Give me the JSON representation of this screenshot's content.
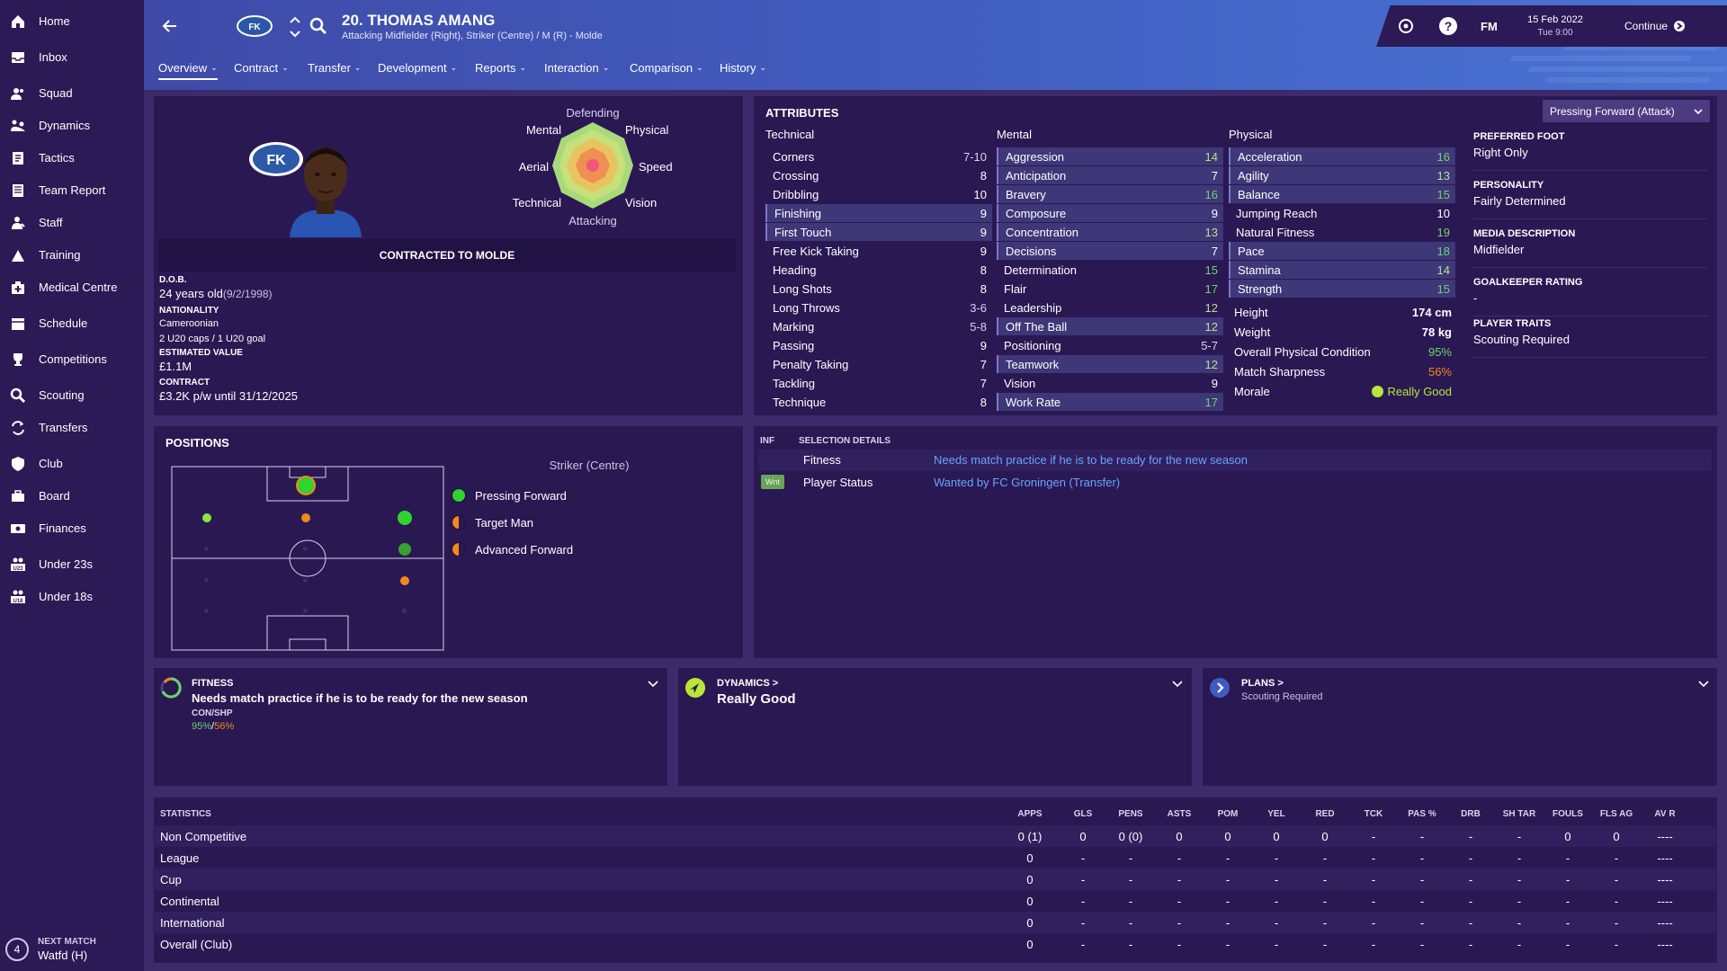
{
  "sidebar": {
    "items": [
      {
        "label": "Home",
        "icon": "home-icon"
      },
      {
        "label": "Inbox",
        "icon": "inbox-icon"
      },
      {
        "label": "Squad",
        "icon": "squad-icon"
      },
      {
        "label": "Dynamics",
        "icon": "dynamics-icon"
      },
      {
        "label": "Tactics",
        "icon": "tactics-icon"
      },
      {
        "label": "Team Report",
        "icon": "report-icon"
      },
      {
        "label": "Staff",
        "icon": "staff-icon"
      },
      {
        "label": "Training",
        "icon": "training-icon"
      },
      {
        "label": "Medical Centre",
        "icon": "medical-icon"
      },
      {
        "label": "Schedule",
        "icon": "calendar-icon"
      },
      {
        "label": "Competitions",
        "icon": "trophy-icon"
      },
      {
        "label": "Scouting",
        "icon": "search-icon"
      },
      {
        "label": "Transfers",
        "icon": "transfer-icon"
      },
      {
        "label": "Club",
        "icon": "shield-icon"
      },
      {
        "label": "Board",
        "icon": "board-icon"
      },
      {
        "label": "Finances",
        "icon": "finance-icon"
      },
      {
        "label": "Under 23s",
        "icon": "u23-icon"
      },
      {
        "label": "Under 18s",
        "icon": "u18-icon"
      }
    ],
    "next_match": {
      "label": "NEXT MATCH",
      "value": "Watfd (H)",
      "days": "4"
    }
  },
  "header": {
    "player_title": "20. THOMAS AMANG",
    "positions": "Attacking Midfielder (Right), Striker (Centre) / M (R) - Molde",
    "date": "15 Feb 2022",
    "time": "Tue 9:00",
    "fm_label": "FM",
    "continue_label": "Continue",
    "help_label": "?"
  },
  "tabs": [
    {
      "label": "Overview"
    },
    {
      "label": "Contract"
    },
    {
      "label": "Transfer"
    },
    {
      "label": "Development"
    },
    {
      "label": "Reports"
    },
    {
      "label": "Interaction"
    },
    {
      "label": "Comparison"
    },
    {
      "label": "History"
    }
  ],
  "profile": {
    "radar_labels": {
      "top": "Defending",
      "bottom": "Attacking",
      "tl": "Mental",
      "tr": "Physical",
      "ml": "Aerial",
      "mr": "Speed",
      "bl": "Technical",
      "br": "Vision"
    },
    "contract_banner": "CONTRACTED TO MOLDE",
    "dob_label": "D.O.B.",
    "dob_age": "24 years old",
    "dob_date": "(9/2/1998)",
    "nationality_label": "NATIONALITY",
    "nationality": "Cameroonian",
    "caps": "2 U20 caps / 1 U20 goal",
    "value_label": "ESTIMATED VALUE",
    "value": "£1.1M",
    "contract_label": "CONTRACT",
    "contract": "£3.2K p/w until 31/12/2025"
  },
  "attributes": {
    "title": "ATTRIBUTES",
    "role_select": "Pressing Forward (Attack)",
    "technical_label": "Technical",
    "mental_label": "Mental",
    "physical_label": "Physical",
    "technical": [
      {
        "name": "Corners",
        "value": "7-10",
        "hl": false
      },
      {
        "name": "Crossing",
        "value": "8",
        "hl": false
      },
      {
        "name": "Dribbling",
        "value": "10",
        "hl": false
      },
      {
        "name": "Finishing",
        "value": "9",
        "hl": true
      },
      {
        "name": "First Touch",
        "value": "9",
        "hl": true
      },
      {
        "name": "Free Kick Taking",
        "value": "9",
        "hl": false
      },
      {
        "name": "Heading",
        "value": "8",
        "hl": false
      },
      {
        "name": "Long Shots",
        "value": "8",
        "hl": false
      },
      {
        "name": "Long Throws",
        "value": "3-6",
        "hl": false
      },
      {
        "name": "Marking",
        "value": "5-8",
        "hl": false
      },
      {
        "name": "Passing",
        "value": "9",
        "hl": false
      },
      {
        "name": "Penalty Taking",
        "value": "7",
        "hl": false
      },
      {
        "name": "Tackling",
        "value": "7",
        "hl": false
      },
      {
        "name": "Technique",
        "value": "8",
        "hl": false
      }
    ],
    "mental": [
      {
        "name": "Aggression",
        "value": "14",
        "hl": true
      },
      {
        "name": "Anticipation",
        "value": "7",
        "hl": true
      },
      {
        "name": "Bravery",
        "value": "16",
        "hl": true
      },
      {
        "name": "Composure",
        "value": "9",
        "hl": true
      },
      {
        "name": "Concentration",
        "value": "13",
        "hl": true
      },
      {
        "name": "Decisions",
        "value": "7",
        "hl": true
      },
      {
        "name": "Determination",
        "value": "15",
        "hl": false
      },
      {
        "name": "Flair",
        "value": "17",
        "hl": false
      },
      {
        "name": "Leadership",
        "value": "12",
        "hl": false
      },
      {
        "name": "Off The Ball",
        "value": "12",
        "hl": true
      },
      {
        "name": "Positioning",
        "value": "5-7",
        "hl": false
      },
      {
        "name": "Teamwork",
        "value": "12",
        "hl": true
      },
      {
        "name": "Vision",
        "value": "9",
        "hl": false
      },
      {
        "name": "Work Rate",
        "value": "17",
        "hl": true
      }
    ],
    "physical": [
      {
        "name": "Acceleration",
        "value": "16",
        "hl": true
      },
      {
        "name": "Agility",
        "value": "13",
        "hl": true
      },
      {
        "name": "Balance",
        "value": "15",
        "hl": true
      },
      {
        "name": "Jumping Reach",
        "value": "10",
        "hl": false
      },
      {
        "name": "Natural Fitness",
        "value": "19",
        "hl": false
      },
      {
        "name": "Pace",
        "value": "18",
        "hl": true
      },
      {
        "name": "Stamina",
        "value": "14",
        "hl": true
      },
      {
        "name": "Strength",
        "value": "15",
        "hl": true
      }
    ],
    "info": [
      {
        "name": "Height",
        "value": "174 cm"
      },
      {
        "name": "Weight",
        "value": "78 kg"
      },
      {
        "name": "Overall Physical Condition",
        "value": "95%"
      },
      {
        "name": "Match Sharpness",
        "value": "56%"
      },
      {
        "name": "Morale",
        "value": "Really Good"
      }
    ],
    "side": [
      {
        "label": "PREFERRED FOOT",
        "value": "Right Only"
      },
      {
        "label": "PERSONALITY",
        "value": "Fairly Determined"
      },
      {
        "label": "MEDIA DESCRIPTION",
        "value": "Midfielder"
      },
      {
        "label": "GOALKEEPER RATING",
        "value": "-"
      },
      {
        "label": "PLAYER TRAITS",
        "value": "Scouting Required"
      }
    ]
  },
  "positions": {
    "title": "POSITIONS",
    "selected": "Striker (Centre)",
    "roles": [
      {
        "label": "Pressing Forward",
        "color": "#2fd42f"
      },
      {
        "label": "Target Man",
        "color": "#f08a1a"
      },
      {
        "label": "Advanced Forward",
        "color": "#f08a1a"
      }
    ]
  },
  "selection": {
    "inf_label": "INF",
    "title": "SELECTION DETAILS",
    "rows": [
      {
        "badge": "",
        "label": "Fitness",
        "value": "Needs match practice if he is to be ready for the new season"
      },
      {
        "badge": "Wnt",
        "label": "Player Status",
        "value": "Wanted by FC Groningen (Transfer)"
      }
    ]
  },
  "cards": {
    "fitness": {
      "title": "FITNESS",
      "text": "Needs match practice if he is to be ready for the new season",
      "sub_label": "CON/SHP",
      "con": "95%",
      "sep": "/",
      "shp": "56%"
    },
    "dynamics": {
      "title": "DYNAMICS >",
      "value": "Really Good"
    },
    "plans": {
      "title": "PLANS >",
      "value": "Scouting Required"
    }
  },
  "statistics": {
    "title": "STATISTICS",
    "columns": [
      "APPS",
      "GLS",
      "PENS",
      "ASTS",
      "POM",
      "YEL",
      "RED",
      "TCK",
      "PAS %",
      "DRB",
      "SH TAR",
      "FOULS",
      "FLS AG",
      "AV R"
    ],
    "rows": [
      {
        "name": "Non Competitive",
        "values": [
          "0 (1)",
          "0",
          "0 (0)",
          "0",
          "0",
          "0",
          "0",
          "-",
          "-",
          "-",
          "-",
          "0",
          "0",
          "----"
        ]
      },
      {
        "name": "League",
        "values": [
          "0",
          "-",
          "-",
          "-",
          "-",
          "-",
          "-",
          "-",
          "-",
          "-",
          "-",
          "-",
          "-",
          "----"
        ]
      },
      {
        "name": "Cup",
        "values": [
          "0",
          "-",
          "-",
          "-",
          "-",
          "-",
          "-",
          "-",
          "-",
          "-",
          "-",
          "-",
          "-",
          "----"
        ]
      },
      {
        "name": "Continental",
        "values": [
          "0",
          "-",
          "-",
          "-",
          "-",
          "-",
          "-",
          "-",
          "-",
          "-",
          "-",
          "-",
          "-",
          "----"
        ]
      },
      {
        "name": "International",
        "values": [
          "0",
          "-",
          "-",
          "-",
          "-",
          "-",
          "-",
          "-",
          "-",
          "-",
          "-",
          "-",
          "-",
          "----"
        ]
      },
      {
        "name": "Overall (Club)",
        "values": [
          "0",
          "-",
          "-",
          "-",
          "-",
          "-",
          "-",
          "-",
          "-",
          "-",
          "-",
          "-",
          "-",
          "----"
        ]
      }
    ]
  },
  "colors": {
    "accent": "#3f5bc1",
    "good": "#6fd36a",
    "warn": "#f08a1a",
    "link": "#6aa3ff"
  }
}
